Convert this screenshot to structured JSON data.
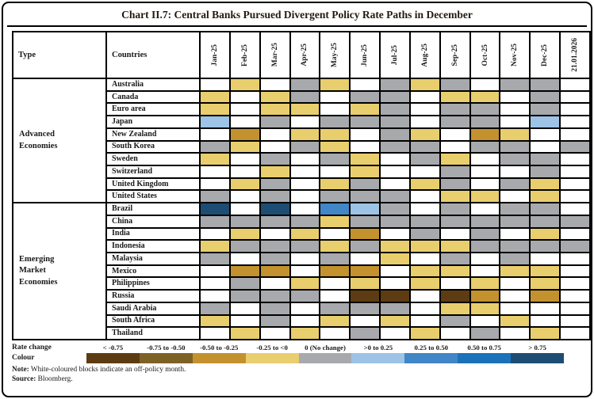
{
  "title": "Chart II.7: Central Banks Pursued Divergent Policy Rate Paths in December",
  "table_headers": {
    "type": "Type",
    "countries": "Countries"
  },
  "note": {
    "label": "Note:",
    "text": " White-coloured blocks indicate an off-policy month."
  },
  "source": {
    "label": "Source:",
    "text": " Bloomberg."
  },
  "chart_data": {
    "type": "heatmap",
    "columns": [
      "Jan-25",
      "Feb-25",
      "Mar-25",
      "Apr-25",
      "May-25",
      "Jun-25",
      "Jul-25",
      "Aug-25",
      "Sep-25",
      "Oct-25",
      "Nov-25",
      "Dec-25",
      "21.01.2026"
    ],
    "cell_key": {
      "off": {
        "label": "Off-policy month",
        "color": "#FFFFFF"
      },
      "d4": {
        "label": "< -0.75",
        "color": "#5E3C13"
      },
      "d3": {
        "label": "-0.75 to -0.50",
        "color": "#7D6226"
      },
      "d2": {
        "label": "-0.50 to -0.25",
        "color": "#C3922E"
      },
      "d1": {
        "label": "-0.25 to <0",
        "color": "#E9CE6E"
      },
      "0": {
        "label": "0 (No change)",
        "color": "#A7A9AC"
      },
      "u1": {
        "label": ">0 to 0.25",
        "color": "#9DC3E6"
      },
      "u2": {
        "label": "0.25 to 0.50",
        "color": "#4186C7"
      },
      "u3": {
        "label": "0.50 to 0.75",
        "color": "#1B72B8"
      },
      "u4": {
        "label": "> 0.75",
        "color": "#1E4D74"
      }
    },
    "legend": {
      "row_label_1": "Rate change",
      "row_label_2": "Colour",
      "bins": [
        {
          "key": "d4",
          "label": "< -0.75",
          "color": "#5E3C13"
        },
        {
          "key": "d3",
          "label": "-0.75 to -0.50",
          "color": "#7D6226"
        },
        {
          "key": "d2",
          "label": "-0.50 to -0.25",
          "color": "#C3922E"
        },
        {
          "key": "d1",
          "label": "-0.25 to <0",
          "color": "#E9CE6E"
        },
        {
          "key": "0",
          "label": "0  (No change)",
          "color": "#A7A9AC"
        },
        {
          "key": "u1",
          "label": ">0 to 0.25",
          "color": "#9DC3E6"
        },
        {
          "key": "u2",
          "label": "0.25 to 0.50",
          "color": "#4186C7"
        },
        {
          "key": "u3",
          "label": "0.50 to 0.75",
          "color": "#1B72B8"
        },
        {
          "key": "u4",
          "label": "> 0.75",
          "color": "#1E4D74"
        }
      ]
    },
    "groups": [
      {
        "label": "Advanced Economies",
        "label_lines": [
          "Advanced",
          "Economies"
        ],
        "rows": [
          {
            "country": "Australia",
            "cells": [
              "off",
              "d1",
              "off",
              "0",
              "d1",
              "off",
              "0",
              "d1",
              "0",
              "off",
              "0",
              "0",
              "off"
            ]
          },
          {
            "country": "Canada",
            "cells": [
              "d1",
              "off",
              "d1",
              "0",
              "off",
              "0",
              "0",
              "off",
              "d1",
              "d1",
              "off",
              "0",
              "off"
            ]
          },
          {
            "country": "Euro area",
            "cells": [
              "d1",
              "off",
              "d1",
              "d1",
              "off",
              "d1",
              "0",
              "off",
              "0",
              "0",
              "off",
              "0",
              "off"
            ]
          },
          {
            "country": "Japan",
            "cells": [
              "u1",
              "off",
              "0",
              "off",
              "0",
              "0",
              "0",
              "off",
              "0",
              "0",
              "off",
              "u1",
              "off"
            ]
          },
          {
            "country": "New Zealand",
            "cells": [
              "off",
              "d2",
              "off",
              "d1",
              "d1",
              "off",
              "0",
              "d1",
              "off",
              "d2",
              "d1",
              "off",
              "off"
            ]
          },
          {
            "country": "South Korea",
            "cells": [
              "0",
              "d1",
              "off",
              "0",
              "d1",
              "off",
              "0",
              "0",
              "off",
              "0",
              "0",
              "off",
              "0"
            ]
          },
          {
            "country": "Sweden",
            "cells": [
              "d1",
              "off",
              "0",
              "off",
              "0",
              "d1",
              "off",
              "0",
              "d1",
              "off",
              "0",
              "0",
              "off"
            ]
          },
          {
            "country": "Switzerland",
            "cells": [
              "off",
              "off",
              "d1",
              "off",
              "off",
              "d1",
              "off",
              "off",
              "0",
              "off",
              "off",
              "0",
              "off"
            ]
          },
          {
            "country": "United Kingdom",
            "cells": [
              "off",
              "d1",
              "0",
              "off",
              "d1",
              "0",
              "off",
              "d1",
              "0",
              "off",
              "0",
              "d1",
              "off"
            ]
          },
          {
            "country": "United States",
            "cells": [
              "0",
              "off",
              "0",
              "off",
              "0",
              "0",
              "0",
              "off",
              "d1",
              "d1",
              "off",
              "d1",
              "off"
            ]
          }
        ]
      },
      {
        "label": "Emerging Market Economies",
        "label_lines": [
          "Emerging",
          "Market",
          "Economies"
        ],
        "rows": [
          {
            "country": "Brazil",
            "cells": [
              "u4",
              "off",
              "u4",
              "off",
              "u2",
              "u1",
              "0",
              "off",
              "0",
              "off",
              "0",
              "0",
              "off"
            ]
          },
          {
            "country": "China",
            "cells": [
              "0",
              "0",
              "0",
              "0",
              "d1",
              "0",
              "0",
              "0",
              "0",
              "0",
              "0",
              "0",
              "0"
            ]
          },
          {
            "country": "India",
            "cells": [
              "off",
              "d1",
              "off",
              "d1",
              "off",
              "d2",
              "off",
              "0",
              "off",
              "0",
              "off",
              "d1",
              "off"
            ]
          },
          {
            "country": "Indonesia",
            "cells": [
              "d1",
              "0",
              "0",
              "0",
              "d1",
              "0",
              "d1",
              "d1",
              "d1",
              "0",
              "0",
              "0",
              "0"
            ]
          },
          {
            "country": "Malaysia",
            "cells": [
              "0",
              "off",
              "0",
              "off",
              "0",
              "off",
              "d1",
              "off",
              "0",
              "off",
              "0",
              "off",
              "off"
            ]
          },
          {
            "country": "Mexico",
            "cells": [
              "off",
              "d2",
              "d2",
              "off",
              "d2",
              "d2",
              "off",
              "d1",
              "d1",
              "off",
              "d1",
              "d1",
              "off"
            ]
          },
          {
            "country": "Philippines",
            "cells": [
              "off",
              "0",
              "off",
              "d1",
              "off",
              "d1",
              "off",
              "d1",
              "off",
              "d1",
              "off",
              "d1",
              "off"
            ]
          },
          {
            "country": "Russia",
            "cells": [
              "off",
              "0",
              "0",
              "0",
              "off",
              "d4",
              "d4",
              "off",
              "d4",
              "d2",
              "off",
              "d2",
              "off"
            ]
          },
          {
            "country": "Saudi Arabia",
            "cells": [
              "0",
              "off",
              "0",
              "off",
              "0",
              "0",
              "0",
              "off",
              "d1",
              "d1",
              "off",
              "off",
              "off"
            ]
          },
          {
            "country": "South Africa",
            "cells": [
              "d1",
              "off",
              "0",
              "off",
              "d1",
              "off",
              "d1",
              "off",
              "0",
              "off",
              "d1",
              "off",
              "off"
            ]
          },
          {
            "country": "Thailand",
            "cells": [
              "off",
              "d1",
              "off",
              "d1",
              "off",
              "0",
              "off",
              "d1",
              "off",
              "0",
              "off",
              "d1",
              "off"
            ]
          }
        ]
      }
    ]
  }
}
